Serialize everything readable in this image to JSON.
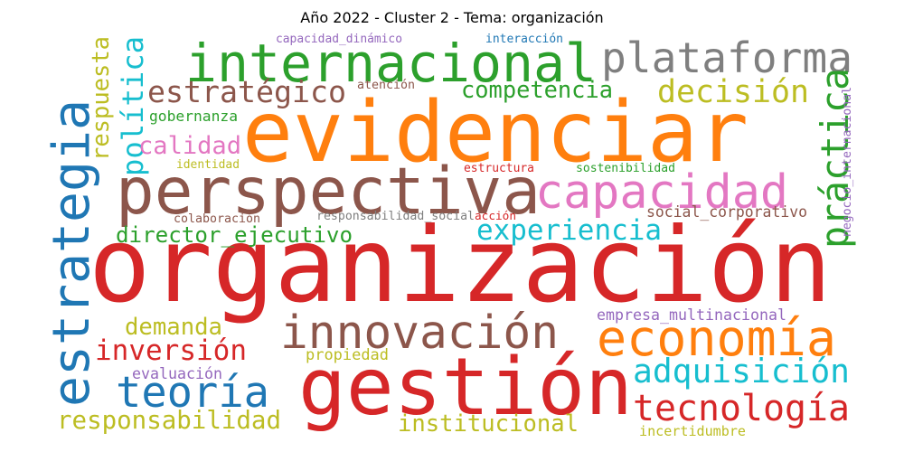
{
  "chart_data": {
    "type": "wordcloud",
    "title": "Año 2022 - Cluster 2 - Tema: organización",
    "words": [
      {
        "text": "organización",
        "weight": 100,
        "color": "#d62728"
      },
      {
        "text": "evidenciar",
        "weight": 78,
        "color": "#ff7f0e"
      },
      {
        "text": "gestión",
        "weight": 70,
        "color": "#d62728"
      },
      {
        "text": "perspectiva",
        "weight": 57,
        "color": "#8c564b"
      },
      {
        "text": "internacional",
        "weight": 53,
        "color": "#2ca02c"
      },
      {
        "text": "capacidad",
        "weight": 50,
        "color": "#e377c2"
      },
      {
        "text": "estrategia",
        "weight": 48,
        "color": "#1f77b4"
      },
      {
        "text": "innovación",
        "weight": 46,
        "color": "#8c564b"
      },
      {
        "text": "plataforma",
        "weight": 45,
        "color": "#7f7f7f"
      },
      {
        "text": "economía",
        "weight": 42,
        "color": "#ff7f0e"
      },
      {
        "text": "teoría",
        "weight": 40,
        "color": "#1f77b4"
      },
      {
        "text": "práctica",
        "weight": 36,
        "color": "#2ca02c"
      },
      {
        "text": "tecnología",
        "weight": 34,
        "color": "#d62728"
      },
      {
        "text": "adquisición",
        "weight": 31,
        "color": "#17becf"
      },
      {
        "text": "decisión",
        "weight": 30,
        "color": "#bcbd22"
      },
      {
        "text": "experiencia",
        "weight": 29,
        "color": "#17becf"
      },
      {
        "text": "estratégico",
        "weight": 29,
        "color": "#8c564b"
      },
      {
        "text": "inversión",
        "weight": 28,
        "color": "#d62728"
      },
      {
        "text": "política",
        "weight": 26,
        "color": "#17becf"
      },
      {
        "text": "director_ejecutivo",
        "weight": 22,
        "color": "#2ca02c"
      },
      {
        "text": "responsabilidad",
        "weight": 22,
        "color": "#bcbd22"
      },
      {
        "text": "institucional",
        "weight": 22,
        "color": "#bcbd22"
      },
      {
        "text": "competencia",
        "weight": 21,
        "color": "#2ca02c"
      },
      {
        "text": "calidad",
        "weight": 21,
        "color": "#e377c2"
      },
      {
        "text": "demanda",
        "weight": 20,
        "color": "#bcbd22"
      },
      {
        "text": "respuesta",
        "weight": 18,
        "color": "#bcbd22"
      },
      {
        "text": "social_corporativo",
        "weight": 15,
        "color": "#8c564b"
      },
      {
        "text": "gobernanza",
        "weight": 13,
        "color": "#2ca02c"
      },
      {
        "text": "empresa_multinacional",
        "weight": 13,
        "color": "#9467bd"
      },
      {
        "text": "incertidumbre",
        "weight": 13,
        "color": "#bcbd22"
      },
      {
        "text": "evaluación",
        "weight": 13,
        "color": "#9467bd"
      },
      {
        "text": "propiedad",
        "weight": 13,
        "color": "#bcbd22"
      },
      {
        "text": "capacidad_dinámico",
        "weight": 11,
        "color": "#9467bd"
      },
      {
        "text": "interacción",
        "weight": 11,
        "color": "#1f77b4"
      },
      {
        "text": "atención",
        "weight": 11,
        "color": "#8c564b"
      },
      {
        "text": "identidad",
        "weight": 11,
        "color": "#bcbd22"
      },
      {
        "text": "estructura",
        "weight": 11,
        "color": "#d62728"
      },
      {
        "text": "sostenibilidad",
        "weight": 11,
        "color": "#2ca02c"
      },
      {
        "text": "colaboración",
        "weight": 11,
        "color": "#8c564b"
      },
      {
        "text": "responsabilidad_social",
        "weight": 11,
        "color": "#7f7f7f"
      },
      {
        "text": "acción",
        "weight": 11,
        "color": "#d62728"
      },
      {
        "text": "negocio_internacional",
        "weight": 11,
        "color": "#9467bd"
      }
    ]
  }
}
